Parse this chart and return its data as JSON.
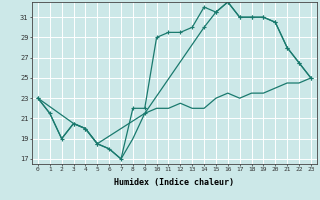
{
  "xlabel": "Humidex (Indice chaleur)",
  "bg_color": "#cce8e8",
  "grid_color": "#ffffff",
  "line_color": "#1a7a6e",
  "xlim": [
    -0.5,
    23.5
  ],
  "ylim": [
    16.5,
    32.5
  ],
  "yticks": [
    17,
    19,
    21,
    23,
    25,
    27,
    29,
    31
  ],
  "xticks": [
    0,
    1,
    2,
    3,
    4,
    5,
    6,
    7,
    8,
    9,
    10,
    11,
    12,
    13,
    14,
    15,
    16,
    17,
    18,
    19,
    20,
    21,
    22,
    23
  ],
  "line1_x": [
    0,
    1,
    2,
    3,
    4,
    5,
    6,
    7,
    8,
    9,
    10,
    11,
    12,
    13,
    14,
    15,
    16,
    17,
    18,
    19,
    20,
    21,
    22,
    23
  ],
  "line1_y": [
    23,
    21.5,
    19,
    20.5,
    20,
    18.5,
    18,
    17,
    19,
    21.5,
    22,
    22,
    22.5,
    22,
    22,
    23,
    23.5,
    23,
    23.5,
    23.5,
    24,
    24.5,
    24.5,
    25
  ],
  "line2_x": [
    0,
    1,
    2,
    3,
    4,
    5,
    6,
    7,
    8,
    9,
    10,
    11,
    12,
    13,
    14,
    15,
    16,
    17,
    18,
    19,
    20,
    21,
    22,
    23
  ],
  "line2_y": [
    23,
    21.5,
    19,
    20.5,
    20,
    18.5,
    18,
    17,
    22,
    22,
    29,
    29.5,
    29.5,
    30,
    32,
    31.5,
    32.5,
    31,
    31,
    31,
    30.5,
    28,
    26.5,
    25
  ],
  "line3_x": [
    0,
    3,
    4,
    5,
    9,
    14,
    15,
    16,
    17,
    18,
    19,
    20,
    21,
    22,
    23
  ],
  "line3_y": [
    23,
    20.5,
    20,
    18.5,
    21.5,
    30,
    31.5,
    32.5,
    31,
    31,
    31,
    30.5,
    28,
    26.5,
    25
  ]
}
